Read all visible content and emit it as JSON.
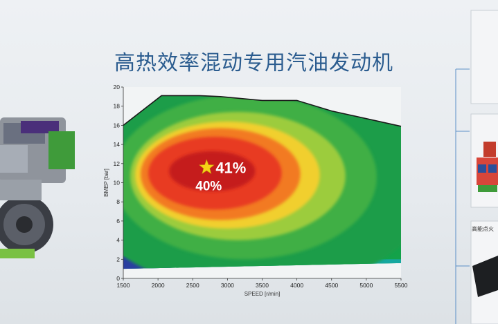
{
  "page": {
    "title": "高热效率混动专用汽油发动机",
    "right_caption": "高能点火"
  },
  "chart_data": {
    "type": "heatmap",
    "title": "",
    "xlabel": "SPEED [r/min]",
    "ylabel": "BMEP [bar]",
    "xlim": [
      1500,
      5500
    ],
    "ylim": [
      0,
      20
    ],
    "x_ticks": [
      1500,
      2000,
      2500,
      3000,
      3500,
      4000,
      4500,
      5000,
      5500
    ],
    "y_ticks": [
      0,
      2,
      4,
      6,
      8,
      10,
      12,
      14,
      16,
      18,
      20
    ],
    "max_torque_curve": {
      "x": [
        1500,
        2050,
        2600,
        2900,
        3500,
        4000,
        4500,
        5500
      ],
      "y": [
        16.0,
        19.1,
        19.1,
        19.0,
        18.6,
        18.6,
        17.5,
        15.9
      ]
    },
    "peak": {
      "x": 2800,
      "y": 11.6,
      "label": "41%"
    },
    "annotations": [
      {
        "text": "40%",
        "x": 2540,
        "y": 9.7
      }
    ],
    "colors": {
      "peak": "#c51b1b",
      "high": "#e83a22",
      "orange": "#f27a21",
      "yellow": "#f1cf2d",
      "lightgreen": "#9ccc3c",
      "green": "#2fa84a",
      "blue": "#2a3fa0",
      "star": "#f5d216"
    },
    "grid": false
  }
}
